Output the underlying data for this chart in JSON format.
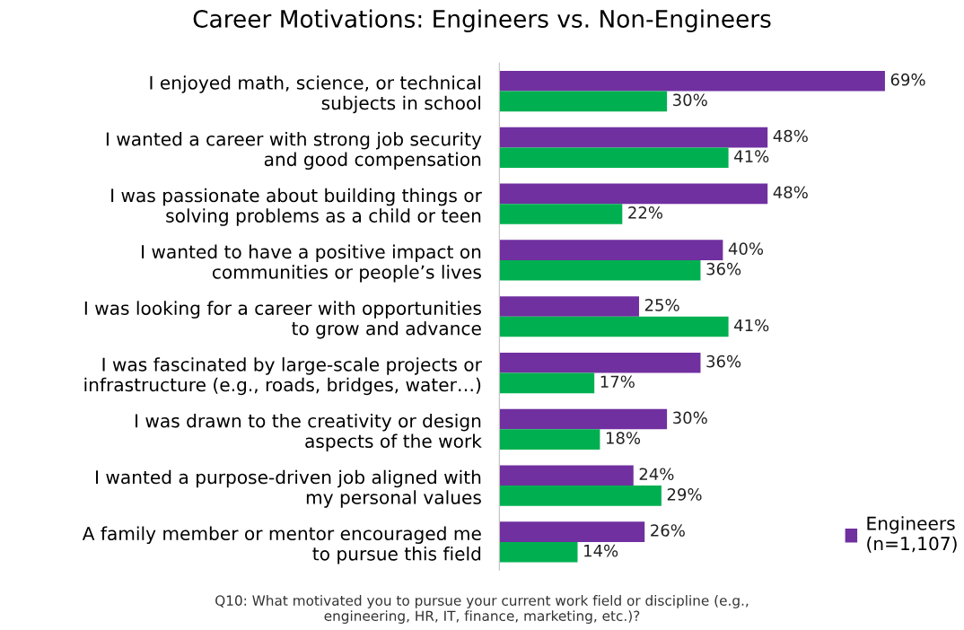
{
  "chart_data": {
    "type": "bar",
    "orientation": "horizontal",
    "title": "Career Motivations: Engineers vs. Non-Engineers",
    "categories": [
      "I enjoyed math, science, or technical\nsubjects in school",
      "I wanted a career with strong job security\nand good compensation",
      "I was passionate about building things or\nsolving problems as a child or teen",
      "I wanted to have a positive impact on\ncommunities or people’s lives",
      "I was looking for a career with opportunities\nto grow and advance",
      "I was fascinated by large-scale projects or\ninfrastructure (e.g., roads, bridges, water…)",
      "I was drawn to the creativity or design\naspects of the work",
      "I wanted a purpose-driven job aligned with\nmy personal values",
      "A family member or mentor encouraged me\nto pursue this field"
    ],
    "series": [
      {
        "name": "Engineers\n(n=1,107)",
        "color": "#7030a0",
        "values": [
          69,
          48,
          48,
          40,
          25,
          36,
          30,
          24,
          26
        ],
        "value_labels": [
          "69%",
          "48%",
          "48%",
          "40%",
          "25%",
          "36%",
          "30%",
          "24%",
          "26%"
        ]
      },
      {
        "color": "#00b050",
        "values": [
          30,
          41,
          22,
          36,
          41,
          17,
          18,
          29,
          14
        ],
        "value_labels": [
          "30%",
          "41%",
          "22%",
          "36%",
          "41%",
          "17%",
          "18%",
          "29%",
          "14%"
        ]
      }
    ],
    "legend": "bottom right",
    "grid": false,
    "annotations": [
      "Q10: What motivated you to pursue your current work field or discipline (e.g.,\nengineering, HR, IT, finance, marketing, etc.)?"
    ]
  }
}
